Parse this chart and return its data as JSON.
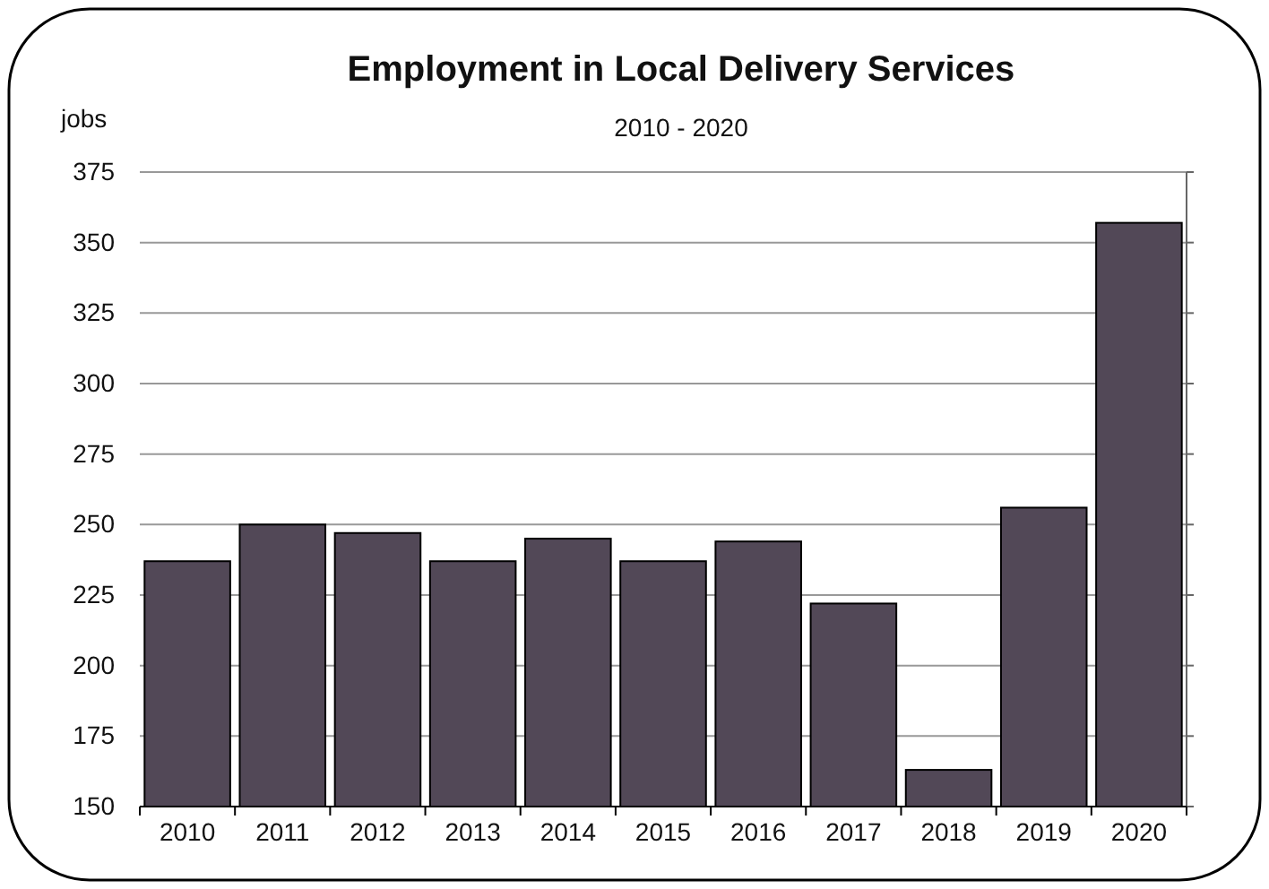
{
  "chart_data": {
    "type": "bar",
    "title": "Employment in Local Delivery Services",
    "subtitle": "2010 - 2020",
    "ylabel": "jobs",
    "categories": [
      "2010",
      "2011",
      "2012",
      "2013",
      "2014",
      "2015",
      "2016",
      "2017",
      "2018",
      "2019",
      "2020"
    ],
    "values": [
      237,
      250,
      247,
      237,
      245,
      237,
      244,
      222,
      163,
      256,
      357
    ],
    "color": "#524857",
    "ylim": [
      150,
      375
    ],
    "yticks": [
      150,
      175,
      200,
      225,
      250,
      275,
      300,
      325,
      350,
      375
    ],
    "grid": "y"
  }
}
